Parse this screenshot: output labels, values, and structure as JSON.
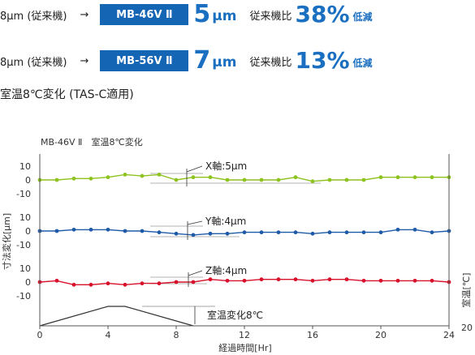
{
  "header": {
    "rows": [
      {
        "label": "8μm (従来機)",
        "arrow": "→",
        "badge": "MB-46V Ⅱ",
        "value": "5",
        "unit": "μm",
        "compare": "従来機比",
        "percent": "38%",
        "reduction": "低減"
      },
      {
        "label": "8μm (従来機)",
        "arrow": "→",
        "badge": "MB-56V Ⅱ",
        "value": "7",
        "unit": "μm",
        "compare": "従来機比",
        "percent": "13%",
        "reduction": "低減"
      }
    ],
    "subtitle": "室温8℃変化 (TAS-C適用)"
  },
  "chart_data": {
    "type": "line",
    "title": "MB-46V Ⅱ　室温8℃変化",
    "xlabel": "経過時間[Hr]",
    "ylabel": "寸法変化[μm]",
    "y2label": "室温[℃]",
    "y2tick": "20",
    "xlim": [
      0,
      24
    ],
    "xticks": [
      "0",
      "4",
      "8",
      "12",
      "16",
      "20",
      "24"
    ],
    "grid": false,
    "colors": {
      "X": "#8dc21f",
      "Y": "#1e5aa8",
      "Z": "#d8102a",
      "temp": "#333333"
    },
    "panels": [
      {
        "name": "X",
        "annotation": "X軸:5μm",
        "yticks": [
          "10",
          "0",
          "-10"
        ],
        "x": [
          0,
          1,
          2,
          3,
          4,
          5,
          6,
          7,
          8,
          9,
          10,
          11,
          12,
          13,
          14,
          15,
          16,
          17,
          18,
          19,
          20,
          21,
          22,
          23,
          24
        ],
        "values": [
          0,
          0,
          1,
          1,
          2,
          4,
          3,
          4,
          0,
          2,
          2,
          0,
          0,
          0,
          0,
          2,
          -1,
          0,
          0,
          0,
          2,
          2,
          2,
          2,
          2
        ]
      },
      {
        "name": "Y",
        "annotation": "Y軸:4μm",
        "yticks": [
          "10",
          "0",
          "-10"
        ],
        "x": [
          0,
          1,
          2,
          3,
          4,
          5,
          6,
          7,
          8,
          9,
          10,
          11,
          12,
          13,
          14,
          15,
          16,
          17,
          18,
          19,
          20,
          21,
          22,
          23,
          24
        ],
        "values": [
          0,
          0,
          1,
          1,
          1,
          0,
          0,
          -1,
          -2,
          -3,
          -2,
          -2,
          -1,
          -1,
          -1,
          -1,
          -2,
          -1,
          -1,
          -1,
          -1,
          1,
          1,
          -1,
          0
        ]
      },
      {
        "name": "Z",
        "annotation": "Z軸:4μm",
        "yticks": [
          "10",
          "0",
          "-10"
        ],
        "x": [
          0,
          1,
          2,
          3,
          4,
          5,
          6,
          7,
          8,
          9,
          10,
          11,
          12,
          13,
          14,
          15,
          16,
          17,
          18,
          19,
          20,
          21,
          22,
          23,
          24
        ],
        "values": [
          0,
          1,
          -2,
          -2,
          -1,
          -2,
          -1,
          -1,
          0,
          0,
          2,
          1,
          1,
          2,
          2,
          2,
          1,
          2,
          2,
          1,
          1,
          1,
          1,
          1,
          0
        ]
      }
    ],
    "temperature": {
      "annotation": "室温変化8℃",
      "x": [
        0,
        4,
        5,
        9
      ],
      "values": [
        0,
        8,
        8,
        0
      ]
    }
  }
}
